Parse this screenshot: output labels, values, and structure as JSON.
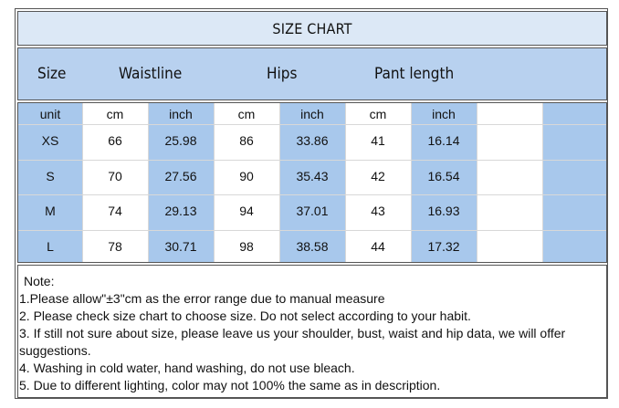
{
  "title": "SIZE CHART",
  "headers": {
    "size": "Size",
    "waistline": "Waistline",
    "hips": "Hips",
    "pant_length": "Pant length"
  },
  "columns": [
    "unit",
    "cm",
    "inch",
    "cm",
    "inch",
    "cm",
    "inch"
  ],
  "rows": [
    [
      "XS",
      "66",
      "25.98",
      "86",
      "33.86",
      "41",
      "16.14"
    ],
    [
      "S",
      "70",
      "27.56",
      "90",
      "35.43",
      "42",
      "16.54"
    ],
    [
      "M",
      "74",
      "29.13",
      "94",
      "37.01",
      "43",
      "16.93"
    ],
    [
      "L",
      "78",
      "30.71",
      "98",
      "38.58",
      "44",
      "17.32"
    ]
  ],
  "notes": {
    "heading": "Note:",
    "items": [
      "1.Please allow\"±3\"cm as the error range due to manual measure",
      "2. Please check size chart to choose size. Do not select according to your habit.",
      "3. If still not sure about size, please leave us your shoulder, bust, waist and hip data, we will offer suggestions.",
      "4. Washing in cold water, hand washing, do not use bleach.",
      "5. Due to different lighting, color may not 100% the same as in description."
    ]
  }
}
